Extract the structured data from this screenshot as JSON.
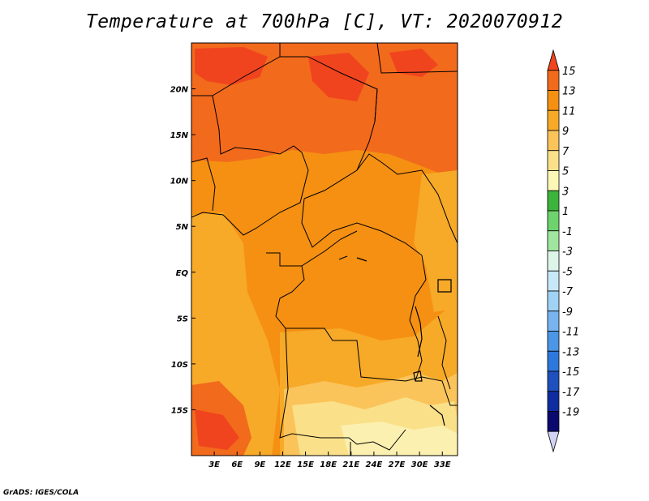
{
  "title": "Temperature at 700hPa [C], VT: 2020070912",
  "footer": "GrADS: IGES/COLA",
  "map": {
    "lon_range": [
      0,
      35
    ],
    "lat_range": [
      -20,
      25
    ],
    "x_ticks": [
      {
        "value": 3,
        "label": "3E"
      },
      {
        "value": 6,
        "label": "6E"
      },
      {
        "value": 9,
        "label": "9E"
      },
      {
        "value": 12,
        "label": "12E"
      },
      {
        "value": 15,
        "label": "15E"
      },
      {
        "value": 18,
        "label": "18E"
      },
      {
        "value": 21,
        "label": "21E"
      },
      {
        "value": 24,
        "label": "24E"
      },
      {
        "value": 27,
        "label": "27E"
      },
      {
        "value": 30,
        "label": "30E"
      },
      {
        "value": 33,
        "label": "33E"
      }
    ],
    "y_ticks": [
      {
        "value": 20,
        "label": "20N"
      },
      {
        "value": 15,
        "label": "15N"
      },
      {
        "value": 10,
        "label": "10N"
      },
      {
        "value": 5,
        "label": "5N"
      },
      {
        "value": 0,
        "label": "EQ"
      },
      {
        "value": -5,
        "label": "5S"
      },
      {
        "value": -10,
        "label": "10S"
      },
      {
        "value": -15,
        "label": "15S"
      }
    ]
  },
  "colorbar": {
    "labels": [
      "15",
      "13",
      "11",
      "9",
      "7",
      "5",
      "3",
      "1",
      "-1",
      "-3",
      "-5",
      "-7",
      "-9",
      "-11",
      "-13",
      "-15",
      "-17",
      "-19"
    ],
    "colors": [
      "#f0441e",
      "#f26a1c",
      "#f59012",
      "#f7a928",
      "#fac45a",
      "#fbe08a",
      "#fcf7b6",
      "#3cb43c",
      "#6ed26e",
      "#a0e6a0",
      "#dcf5e8",
      "#c8e8fa",
      "#a0d2f5",
      "#78b4f0",
      "#4b96e6",
      "#2d78dc",
      "#1e50be",
      "#0f2da0",
      "#0a0a6e",
      "#d2d2f5"
    ]
  }
}
